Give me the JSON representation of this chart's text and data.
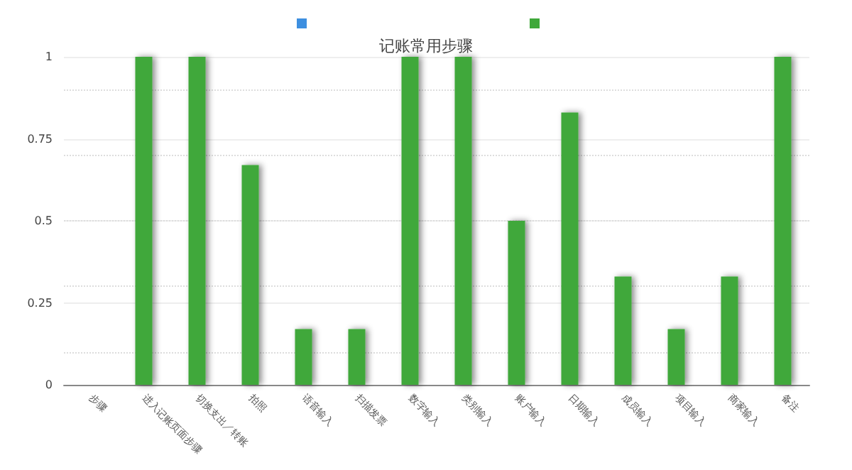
{
  "chart_data": {
    "type": "bar",
    "title": "记账常用步骤",
    "categories": [
      "步骤",
      "进入记账页面步骤",
      "切换支出／转账",
      "拍照",
      "语音输入",
      "扫描发票",
      "数字输入",
      "类别输入",
      "账户输入",
      "日期输入",
      "成员输入",
      "项目输入",
      "商家输入",
      "备注"
    ],
    "series": [
      {
        "color": "#3fa83a",
        "values": [
          0,
          1,
          1,
          0.67,
          0.17,
          0.17,
          1,
          1,
          0.5,
          0.83,
          0.33,
          0.17,
          0.33,
          1
        ]
      }
    ],
    "ylim": [
      0,
      1
    ],
    "yticks": [
      0,
      0.25,
      0.5,
      0.75,
      1
    ],
    "grid": "y"
  }
}
